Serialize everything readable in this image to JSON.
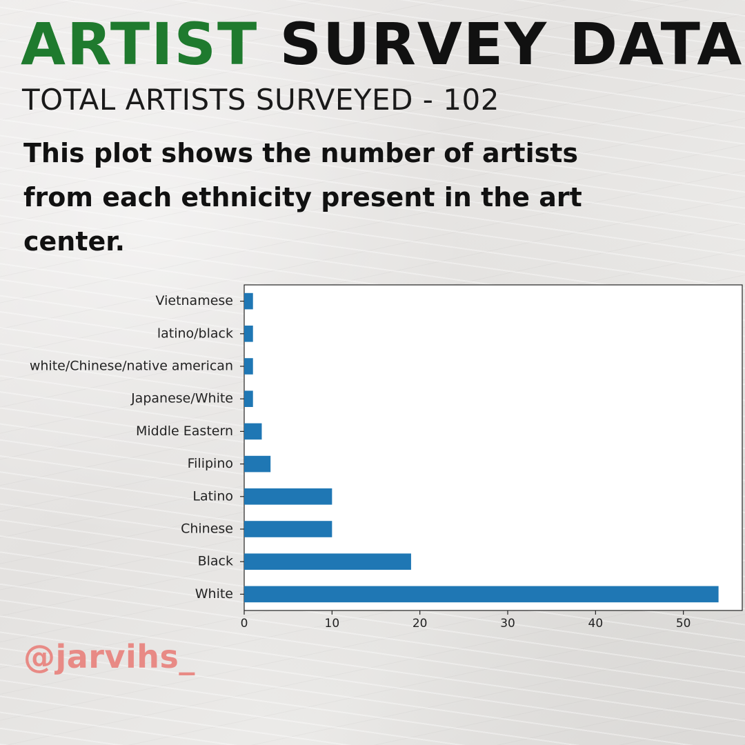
{
  "header": {
    "title_accent": "ARTIST",
    "title_rest": "SURVEY DATA",
    "subtitle": "TOTAL ARTISTS SURVEYED - 102"
  },
  "description": "This plot shows the number of artists from each ethnicity present in the art center.",
  "footer": {
    "handle": "@jarvihs_"
  },
  "colors": {
    "accent": "#1f7a2e",
    "bar": "#1f77b4",
    "handle": "#e88a85"
  },
  "chart_data": {
    "type": "bar",
    "orientation": "horizontal",
    "categories": [
      "White",
      "Black",
      "Chinese",
      "Latino",
      "Filipino",
      "Middle Eastern",
      "Japanese/White",
      "white/Chinese/native american",
      "latino/black",
      "Vietnamese"
    ],
    "values": [
      54,
      19,
      10,
      10,
      3,
      2,
      1,
      1,
      1,
      1
    ],
    "xticks": [
      0,
      10,
      20,
      30,
      40,
      50
    ],
    "xlim": [
      0,
      56.7
    ],
    "grid": false,
    "xlabel": "",
    "ylabel": ""
  }
}
